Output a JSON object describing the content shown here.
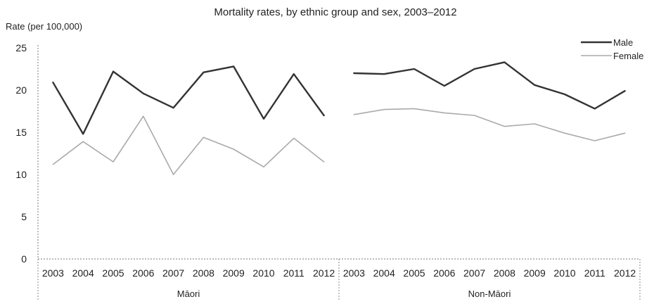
{
  "chart_data": {
    "type": "line",
    "title": "Mortality rates, by ethnic group and sex, 2003–2012",
    "ylabel": "Rate (per 100,000)",
    "xlabel": "",
    "ylim": [
      0,
      25
    ],
    "yticks": [
      "0",
      "5",
      "10",
      "15",
      "20",
      "25"
    ],
    "grid": false,
    "legend_position": "top-right",
    "groups": [
      {
        "name": "Māori",
        "x": [
          "2003",
          "2004",
          "2005",
          "2006",
          "2007",
          "2008",
          "2009",
          "2010",
          "2011",
          "2012"
        ],
        "series": [
          {
            "name": "Male",
            "color": "#333333",
            "values": [
              20.9,
              14.8,
              22.2,
              19.6,
              17.9,
              22.1,
              22.8,
              16.6,
              21.9,
              17.0
            ]
          },
          {
            "name": "Female",
            "color": "#aaaaaa",
            "values": [
              11.2,
              13.9,
              11.5,
              16.9,
              10.0,
              14.4,
              13.0,
              10.9,
              14.3,
              11.5
            ]
          }
        ]
      },
      {
        "name": "Non-Māori",
        "x": [
          "2003",
          "2004",
          "2005",
          "2006",
          "2007",
          "2008",
          "2009",
          "2010",
          "2011",
          "2012"
        ],
        "series": [
          {
            "name": "Male",
            "color": "#333333",
            "values": [
              22.0,
              21.9,
              22.5,
              20.5,
              22.5,
              23.3,
              20.6,
              19.5,
              17.8,
              19.9
            ]
          },
          {
            "name": "Female",
            "color": "#aaaaaa",
            "values": [
              17.1,
              17.7,
              17.8,
              17.3,
              17.0,
              15.7,
              16.0,
              14.9,
              14.0,
              14.9
            ]
          }
        ]
      }
    ]
  }
}
